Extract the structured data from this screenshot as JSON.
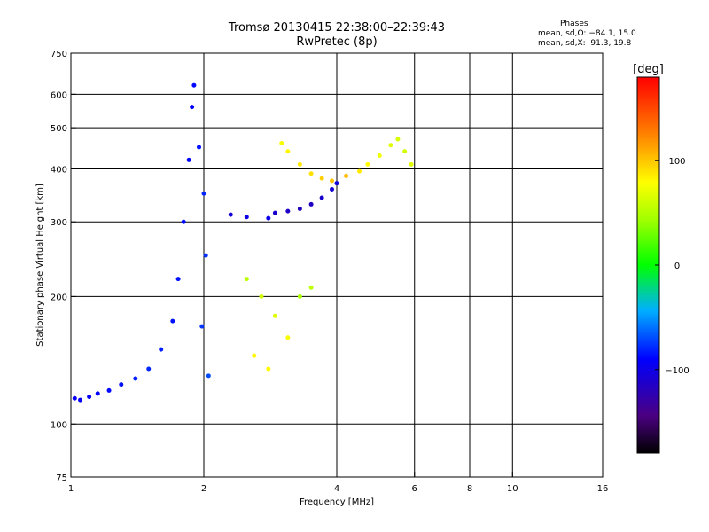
{
  "chart_data": {
    "type": "scatter",
    "title": "Tromsø 20130415 22:38:00–22:39:43",
    "subtitle": "RwPretec (8p)",
    "xlabel": "Frequency [MHz]",
    "ylabel": "Stationary phase Virtual Height [km]",
    "x_scale": "log",
    "y_scale": "log",
    "xlim": [
      1,
      16
    ],
    "ylim": [
      75,
      750
    ],
    "x_ticks": [
      "1",
      "2",
      "4",
      "6",
      "8",
      "10",
      "16"
    ],
    "y_ticks": [
      "75",
      "100",
      "200",
      "300",
      "400",
      "500",
      "600",
      "750"
    ],
    "x_grid": [
      2,
      4,
      6,
      8,
      10
    ],
    "y_grid": [
      100,
      200,
      300,
      400,
      500,
      600
    ],
    "grid": true,
    "colorbar": {
      "label": "[deg]",
      "range": [
        -180,
        180
      ],
      "ticks": [
        "100",
        "0",
        "−100"
      ],
      "tick_values": [
        100,
        0,
        -100
      ]
    },
    "stats": {
      "heading": "Phases",
      "line_o": "mean, sd,O: −84.1, 15.0",
      "line_x": "mean, sd,X:  91.3, 19.8"
    },
    "series": [
      {
        "type": "scatter",
        "points": [
          [
            1.02,
            115,
            -95
          ],
          [
            1.05,
            114,
            -95
          ],
          [
            1.1,
            116,
            -92
          ],
          [
            1.15,
            118,
            -90
          ],
          [
            1.22,
            120,
            -88
          ],
          [
            1.3,
            124,
            -85
          ],
          [
            1.4,
            128,
            -82
          ],
          [
            1.5,
            135,
            -80
          ],
          [
            1.6,
            150,
            -82
          ],
          [
            1.7,
            175,
            -85
          ],
          [
            1.75,
            220,
            -85
          ],
          [
            1.8,
            300,
            -88
          ],
          [
            1.85,
            420,
            -90
          ],
          [
            1.88,
            560,
            -92
          ],
          [
            1.9,
            630,
            -88
          ],
          [
            1.95,
            450,
            -85
          ],
          [
            2.0,
            350,
            -80
          ],
          [
            2.02,
            250,
            -78
          ],
          [
            1.98,
            170,
            -75
          ],
          [
            2.05,
            130,
            -70
          ]
        ]
      },
      {
        "type": "scatter",
        "points": [
          [
            2.3,
            312,
            -105
          ],
          [
            2.5,
            308,
            -102
          ],
          [
            2.8,
            306,
            -98
          ],
          [
            2.9,
            315,
            -110
          ],
          [
            3.1,
            318,
            -115
          ],
          [
            3.3,
            322,
            -120
          ],
          [
            3.5,
            330,
            -118
          ],
          [
            3.7,
            342,
            -112
          ],
          [
            3.9,
            358,
            -108
          ],
          [
            4.0,
            370,
            -105
          ]
        ]
      },
      {
        "type": "scatter",
        "points": [
          [
            3.0,
            460,
            110
          ],
          [
            3.1,
            440,
            115
          ],
          [
            3.3,
            410,
            118
          ],
          [
            3.5,
            390,
            120
          ],
          [
            3.7,
            380,
            125
          ],
          [
            3.9,
            375,
            128
          ],
          [
            4.2,
            385,
            130
          ],
          [
            4.5,
            395,
            118
          ],
          [
            4.7,
            410,
            112
          ],
          [
            5.0,
            430,
            108
          ],
          [
            5.3,
            455,
            105
          ],
          [
            5.5,
            470,
            102
          ],
          [
            5.7,
            440,
            100
          ],
          [
            5.9,
            410,
            105
          ]
        ]
      },
      {
        "type": "scatter",
        "points": [
          [
            2.5,
            220,
            95
          ],
          [
            2.7,
            200,
            100
          ],
          [
            2.9,
            180,
            105
          ],
          [
            3.1,
            160,
            110
          ],
          [
            3.3,
            200,
            90
          ],
          [
            3.5,
            210,
            95
          ],
          [
            2.6,
            145,
            115
          ],
          [
            2.8,
            135,
            112
          ]
        ]
      }
    ]
  }
}
